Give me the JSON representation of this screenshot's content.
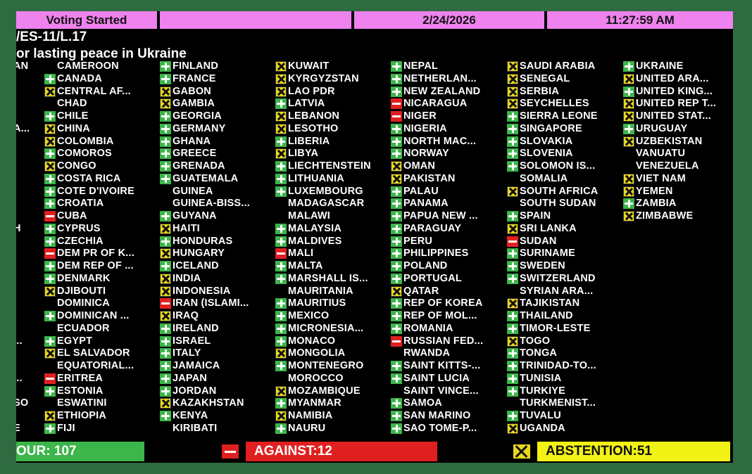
{
  "header": {
    "status": "Voting Started",
    "date": "2/24/2026",
    "time": "11:27:59 AM",
    "resolution": "/ES-11/L.17",
    "title": "or lasting peace in Ukraine"
  },
  "totals": {
    "favour_label": "OUR: 107",
    "against_label": "AGAINST:12",
    "abstention_label": "ABSTENTION:51"
  },
  "columns": [
    [
      {
        "name": "AN",
        "vote": "none"
      },
      {
        "name": "",
        "vote": "none"
      },
      {
        "name": "",
        "vote": "none"
      },
      {
        "name": "",
        "vote": "none"
      },
      {
        "name": "",
        "vote": "none"
      },
      {
        "name": "A...",
        "vote": "none"
      },
      {
        "name": "",
        "vote": "none"
      },
      {
        "name": "",
        "vote": "none"
      },
      {
        "name": "",
        "vote": "none"
      },
      {
        "name": "",
        "vote": "none"
      },
      {
        "name": "",
        "vote": "none"
      },
      {
        "name": "",
        "vote": "none"
      },
      {
        "name": "",
        "vote": "none"
      },
      {
        "name": "H",
        "vote": "none"
      },
      {
        "name": "",
        "vote": "none"
      },
      {
        "name": "",
        "vote": "none"
      },
      {
        "name": "",
        "vote": "none"
      },
      {
        "name": "",
        "vote": "none"
      },
      {
        "name": "",
        "vote": "none"
      },
      {
        "name": "",
        "vote": "none"
      },
      {
        "name": "",
        "vote": "none"
      },
      {
        "name": "",
        "vote": "none"
      },
      {
        "name": "...",
        "vote": "none"
      },
      {
        "name": "",
        "vote": "none"
      },
      {
        "name": "",
        "vote": "none"
      },
      {
        "name": "...",
        "vote": "none"
      },
      {
        "name": "",
        "vote": "none"
      },
      {
        "name": "SO",
        "vote": "none"
      },
      {
        "name": "",
        "vote": "none"
      },
      {
        "name": "E",
        "vote": "none"
      },
      {
        "name": "",
        "vote": "none"
      }
    ],
    [
      {
        "name": "CAMEROON",
        "vote": "none"
      },
      {
        "name": "CANADA",
        "vote": "yes"
      },
      {
        "name": "CENTRAL AF...",
        "vote": "abs"
      },
      {
        "name": "CHAD",
        "vote": "none"
      },
      {
        "name": "CHILE",
        "vote": "yes"
      },
      {
        "name": "CHINA",
        "vote": "abs"
      },
      {
        "name": "COLOMBIA",
        "vote": "abs"
      },
      {
        "name": "COMOROS",
        "vote": "yes"
      },
      {
        "name": "CONGO",
        "vote": "abs"
      },
      {
        "name": "COSTA RICA",
        "vote": "yes"
      },
      {
        "name": "COTE D'IVOIRE",
        "vote": "yes"
      },
      {
        "name": "CROATIA",
        "vote": "yes"
      },
      {
        "name": "CUBA",
        "vote": "no"
      },
      {
        "name": "CYPRUS",
        "vote": "yes"
      },
      {
        "name": "CZECHIA",
        "vote": "yes"
      },
      {
        "name": "DEM PR OF K...",
        "vote": "no"
      },
      {
        "name": "DEM REP OF ...",
        "vote": "yes"
      },
      {
        "name": "DENMARK",
        "vote": "yes"
      },
      {
        "name": "DJIBOUTI",
        "vote": "abs"
      },
      {
        "name": "DOMINICA",
        "vote": "none"
      },
      {
        "name": "DOMINICAN ...",
        "vote": "yes"
      },
      {
        "name": "ECUADOR",
        "vote": "none"
      },
      {
        "name": "EGYPT",
        "vote": "yes"
      },
      {
        "name": "EL SALVADOR",
        "vote": "abs"
      },
      {
        "name": "EQUATORIAL...",
        "vote": "none"
      },
      {
        "name": "ERITREA",
        "vote": "no"
      },
      {
        "name": "ESTONIA",
        "vote": "yes"
      },
      {
        "name": "ESWATINI",
        "vote": "none"
      },
      {
        "name": "ETHIOPIA",
        "vote": "abs"
      },
      {
        "name": "FIJI",
        "vote": "yes"
      }
    ],
    [
      {
        "name": "FINLAND",
        "vote": "yes"
      },
      {
        "name": "FRANCE",
        "vote": "yes"
      },
      {
        "name": "GABON",
        "vote": "abs"
      },
      {
        "name": "GAMBIA",
        "vote": "abs"
      },
      {
        "name": "GEORGIA",
        "vote": "yes"
      },
      {
        "name": "GERMANY",
        "vote": "yes"
      },
      {
        "name": "GHANA",
        "vote": "yes"
      },
      {
        "name": "GREECE",
        "vote": "yes"
      },
      {
        "name": "GRENADA",
        "vote": "yes"
      },
      {
        "name": "GUATEMALA",
        "vote": "yes"
      },
      {
        "name": "GUINEA",
        "vote": "none"
      },
      {
        "name": "GUINEA-BISS...",
        "vote": "none"
      },
      {
        "name": "GUYANA",
        "vote": "yes"
      },
      {
        "name": "HAITI",
        "vote": "abs"
      },
      {
        "name": "HONDURAS",
        "vote": "yes"
      },
      {
        "name": "HUNGARY",
        "vote": "abs"
      },
      {
        "name": "ICELAND",
        "vote": "yes"
      },
      {
        "name": "INDIA",
        "vote": "abs"
      },
      {
        "name": "INDONESIA",
        "vote": "abs"
      },
      {
        "name": "IRAN (ISLAMI...",
        "vote": "no"
      },
      {
        "name": "IRAQ",
        "vote": "abs"
      },
      {
        "name": "IRELAND",
        "vote": "yes"
      },
      {
        "name": "ISRAEL",
        "vote": "yes"
      },
      {
        "name": "ITALY",
        "vote": "yes"
      },
      {
        "name": "JAMAICA",
        "vote": "yes"
      },
      {
        "name": "JAPAN",
        "vote": "yes"
      },
      {
        "name": "JORDAN",
        "vote": "yes"
      },
      {
        "name": "KAZAKHSTAN",
        "vote": "abs"
      },
      {
        "name": "KENYA",
        "vote": "yes"
      },
      {
        "name": "KIRIBATI",
        "vote": "none"
      }
    ],
    [
      {
        "name": "KUWAIT",
        "vote": "abs"
      },
      {
        "name": "KYRGYZSTAN",
        "vote": "abs"
      },
      {
        "name": "LAO PDR",
        "vote": "abs"
      },
      {
        "name": "LATVIA",
        "vote": "yes"
      },
      {
        "name": "LEBANON",
        "vote": "abs"
      },
      {
        "name": "LESOTHO",
        "vote": "abs"
      },
      {
        "name": "LIBERIA",
        "vote": "yes"
      },
      {
        "name": "LIBYA",
        "vote": "abs"
      },
      {
        "name": "LIECHTENSTEIN",
        "vote": "yes"
      },
      {
        "name": "LITHUANIA",
        "vote": "yes"
      },
      {
        "name": "LUXEMBOURG",
        "vote": "yes"
      },
      {
        "name": "MADAGASCAR",
        "vote": "none"
      },
      {
        "name": "MALAWI",
        "vote": "none"
      },
      {
        "name": "MALAYSIA",
        "vote": "yes"
      },
      {
        "name": "MALDIVES",
        "vote": "yes"
      },
      {
        "name": "MALI",
        "vote": "no"
      },
      {
        "name": "MALTA",
        "vote": "yes"
      },
      {
        "name": "MARSHALL IS...",
        "vote": "yes"
      },
      {
        "name": "MAURITANIA",
        "vote": "none"
      },
      {
        "name": "MAURITIUS",
        "vote": "yes"
      },
      {
        "name": "MEXICO",
        "vote": "yes"
      },
      {
        "name": "MICRONESIA...",
        "vote": "yes"
      },
      {
        "name": "MONACO",
        "vote": "yes"
      },
      {
        "name": "MONGOLIA",
        "vote": "abs"
      },
      {
        "name": "MONTENEGRO",
        "vote": "yes"
      },
      {
        "name": "MOROCCO",
        "vote": "none"
      },
      {
        "name": "MOZAMBIQUE",
        "vote": "abs"
      },
      {
        "name": "MYANMAR",
        "vote": "yes"
      },
      {
        "name": "NAMIBIA",
        "vote": "abs"
      },
      {
        "name": "NAURU",
        "vote": "yes"
      }
    ],
    [
      {
        "name": "NEPAL",
        "vote": "yes"
      },
      {
        "name": "NETHERLAN...",
        "vote": "yes"
      },
      {
        "name": "NEW ZEALAND",
        "vote": "yes"
      },
      {
        "name": "NICARAGUA",
        "vote": "no"
      },
      {
        "name": "NIGER",
        "vote": "no"
      },
      {
        "name": "NIGERIA",
        "vote": "yes"
      },
      {
        "name": "NORTH MAC...",
        "vote": "yes"
      },
      {
        "name": "NORWAY",
        "vote": "yes"
      },
      {
        "name": "OMAN",
        "vote": "abs"
      },
      {
        "name": "PAKISTAN",
        "vote": "abs"
      },
      {
        "name": "PALAU",
        "vote": "yes"
      },
      {
        "name": "PANAMA",
        "vote": "yes"
      },
      {
        "name": "PAPUA NEW ...",
        "vote": "yes"
      },
      {
        "name": "PARAGUAY",
        "vote": "yes"
      },
      {
        "name": "PERU",
        "vote": "yes"
      },
      {
        "name": "PHILIPPINES",
        "vote": "yes"
      },
      {
        "name": "POLAND",
        "vote": "yes"
      },
      {
        "name": "PORTUGAL",
        "vote": "yes"
      },
      {
        "name": "QATAR",
        "vote": "abs"
      },
      {
        "name": "REP OF KOREA",
        "vote": "yes"
      },
      {
        "name": "REP OF MOL...",
        "vote": "yes"
      },
      {
        "name": "ROMANIA",
        "vote": "yes"
      },
      {
        "name": "RUSSIAN FED...",
        "vote": "no"
      },
      {
        "name": "RWANDA",
        "vote": "none"
      },
      {
        "name": "SAINT KITTS-...",
        "vote": "yes"
      },
      {
        "name": "SAINT LUCIA",
        "vote": "yes"
      },
      {
        "name": "SAINT VINCE...",
        "vote": "none"
      },
      {
        "name": "SAMOA",
        "vote": "yes"
      },
      {
        "name": "SAN MARINO",
        "vote": "yes"
      },
      {
        "name": "SAO TOME-P...",
        "vote": "yes"
      }
    ],
    [
      {
        "name": "SAUDI ARABIA",
        "vote": "abs"
      },
      {
        "name": "SENEGAL",
        "vote": "abs"
      },
      {
        "name": "SERBIA",
        "vote": "abs"
      },
      {
        "name": "SEYCHELLES",
        "vote": "abs"
      },
      {
        "name": "SIERRA LEONE",
        "vote": "yes"
      },
      {
        "name": "SINGAPORE",
        "vote": "yes"
      },
      {
        "name": "SLOVAKIA",
        "vote": "yes"
      },
      {
        "name": "SLOVENIA",
        "vote": "yes"
      },
      {
        "name": "SOLOMON IS...",
        "vote": "yes"
      },
      {
        "name": "SOMALIA",
        "vote": "none"
      },
      {
        "name": "SOUTH AFRICA",
        "vote": "abs"
      },
      {
        "name": "SOUTH SUDAN",
        "vote": "none"
      },
      {
        "name": "SPAIN",
        "vote": "yes"
      },
      {
        "name": "SRI LANKA",
        "vote": "abs"
      },
      {
        "name": "SUDAN",
        "vote": "no"
      },
      {
        "name": "SURINAME",
        "vote": "yes"
      },
      {
        "name": "SWEDEN",
        "vote": "yes"
      },
      {
        "name": "SWITZERLAND",
        "vote": "yes"
      },
      {
        "name": "SYRIAN ARA...",
        "vote": "none"
      },
      {
        "name": "TAJIKISTAN",
        "vote": "abs"
      },
      {
        "name": "THAILAND",
        "vote": "yes"
      },
      {
        "name": "TIMOR-LESTE",
        "vote": "yes"
      },
      {
        "name": "TOGO",
        "vote": "abs"
      },
      {
        "name": "TONGA",
        "vote": "yes"
      },
      {
        "name": "TRINIDAD-TO...",
        "vote": "yes"
      },
      {
        "name": "TUNISIA",
        "vote": "yes"
      },
      {
        "name": "TURKIYE",
        "vote": "yes"
      },
      {
        "name": "TURKMENIST...",
        "vote": "none"
      },
      {
        "name": "TUVALU",
        "vote": "yes"
      },
      {
        "name": "UGANDA",
        "vote": "abs"
      }
    ],
    [
      {
        "name": "UKRAINE",
        "vote": "yes"
      },
      {
        "name": "UNITED ARA...",
        "vote": "abs"
      },
      {
        "name": "UNITED KING...",
        "vote": "yes"
      },
      {
        "name": "UNITED REP T...",
        "vote": "abs"
      },
      {
        "name": "UNITED STAT...",
        "vote": "abs"
      },
      {
        "name": "URUGUAY",
        "vote": "yes"
      },
      {
        "name": "UZBEKISTAN",
        "vote": "abs"
      },
      {
        "name": "VANUATU",
        "vote": "none"
      },
      {
        "name": "VENEZUELA",
        "vote": "none"
      },
      {
        "name": "VIET NAM",
        "vote": "abs"
      },
      {
        "name": "YEMEN",
        "vote": "abs"
      },
      {
        "name": "ZAMBIA",
        "vote": "yes"
      },
      {
        "name": "ZIMBABWE",
        "vote": "abs"
      }
    ]
  ]
}
